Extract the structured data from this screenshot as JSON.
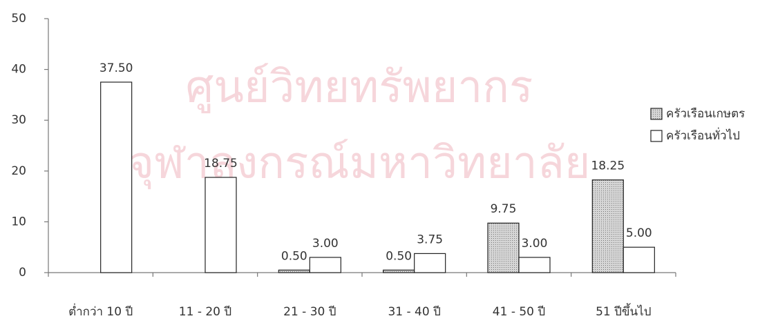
{
  "chart_data": {
    "type": "bar",
    "watermark": [
      "ศูนย์วิทยทรัพยากร",
      "จุฬาลงกรณ์มหาวิทยาลัย"
    ],
    "categories": [
      "ต่ำกว่า 10 ปี",
      "11 - 20 ปี",
      "21 - 30 ปี",
      "31 - 40 ปี",
      "41 - 50 ปี",
      "51 ปีขึ้นไป"
    ],
    "series": [
      {
        "name": "ครัวเรือนเกษตร",
        "color": "#c8c8c8",
        "pattern": "dotted",
        "values": [
          null,
          null,
          0.5,
          0.5,
          9.75,
          18.25
        ],
        "value_labels": [
          null,
          null,
          "0.50",
          "0.50",
          "9.75",
          "18.25"
        ]
      },
      {
        "name": "ครัวเรือนทั่วไป",
        "color": "#ffffff",
        "values": [
          37.5,
          18.75,
          3,
          3.75,
          3,
          5
        ],
        "value_labels": [
          "37.50",
          "18.75",
          "3.00",
          "3.75",
          "3.00",
          "5.00"
        ]
      }
    ],
    "ylim": [
      0,
      50
    ],
    "yticks": [
      0,
      10,
      20,
      30,
      40,
      50
    ],
    "grid": false,
    "legend": "right"
  }
}
